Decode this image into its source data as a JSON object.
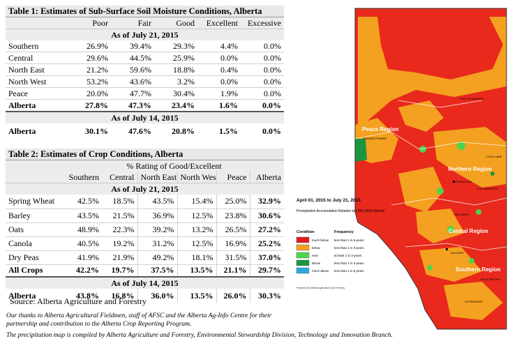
{
  "table1": {
    "title": "Table 1: Estimates of Sub-Surface Soil Moisture Conditions, Alberta",
    "columns": [
      "Poor",
      "Fair",
      "Good",
      "Excellent",
      "Excessive"
    ],
    "as_of_current": "As of July 21, 2015",
    "rows": [
      {
        "region": "Southern",
        "values": [
          "26.9%",
          "39.4%",
          "29.3%",
          "4.4%",
          "0.0%"
        ]
      },
      {
        "region": "Central",
        "values": [
          "29.6%",
          "44.5%",
          "25.9%",
          "0.0%",
          "0.0%"
        ]
      },
      {
        "region": "North East",
        "values": [
          "21.2%",
          "59.6%",
          "18.8%",
          "0.4%",
          "0.0%"
        ]
      },
      {
        "region": "North West",
        "values": [
          "53.2%",
          "43.6%",
          "3.2%",
          "0.0%",
          "0.0%"
        ]
      },
      {
        "region": "Peace",
        "values": [
          "20.0%",
          "47.7%",
          "30.4%",
          "1.9%",
          "0.0%"
        ]
      }
    ],
    "alberta_current": {
      "label": "Alberta",
      "values": [
        "27.8%",
        "47.3%",
        "23.4%",
        "1.6%",
        "0.0%"
      ]
    },
    "as_of_previous": "As of July 14, 2015",
    "alberta_previous": {
      "label": "Alberta",
      "values": [
        "30.1%",
        "47.6%",
        "20.8%",
        "1.5%",
        "0.0%"
      ]
    }
  },
  "table2": {
    "title": "Table 2: Estimates of Crop Conditions, Alberta",
    "subtitle": "% Rating of Good/Excellent",
    "columns": [
      "Southern",
      "Central",
      "North East",
      "North West",
      "Peace",
      "Alberta"
    ],
    "as_of_current": "As of July 21, 2015",
    "rows": [
      {
        "crop": "Spring Wheat",
        "values": [
          "42.5%",
          "18.5%",
          "43.5%",
          "15.4%",
          "25.0%",
          "32.9%"
        ]
      },
      {
        "crop": "Barley",
        "values": [
          "43.5%",
          "21.5%",
          "36.9%",
          "12.5%",
          "23.8%",
          "30.6%"
        ]
      },
      {
        "crop": "Oats",
        "values": [
          "48.9%",
          "22.3%",
          "39.2%",
          "13.2%",
          "26.5%",
          "27.2%"
        ]
      },
      {
        "crop": "Canola",
        "values": [
          "40.5%",
          "19.2%",
          "31.2%",
          "12.5%",
          "16.9%",
          "25.2%"
        ]
      },
      {
        "crop": "Dry Peas",
        "values": [
          "41.9%",
          "21.9%",
          "49.2%",
          "18.1%",
          "31.5%",
          "37.0%"
        ]
      }
    ],
    "all_crops": {
      "label": "All Crops",
      "values": [
        "42.2%",
        "19.7%",
        "37.5%",
        "13.5%",
        "21.1%",
        "29.7%"
      ]
    },
    "as_of_previous": "As of July 14, 2015",
    "alberta_previous": {
      "label": "Alberta",
      "values": [
        "43.8%",
        "16.8%",
        "36.0%",
        "13.5%",
        "26.0%",
        "30.3%"
      ]
    }
  },
  "source": "Source: Alberta Agriculture and Forestry",
  "note1": "Our thanks to Alberta Agricultural Fieldmen, staff of AFSC and the Alberta Ag-Info Centre for their partnership and contribution to the Alberta Crop Reporting Program.",
  "note2": "The precipitation map is compiled by Alberta Agriculture and Forestry, Environmental Stewardship Division, Technology and Innovation Branch.",
  "map": {
    "date_range": "April 01, 2015 to July 21, 2015",
    "subtitle": "Precipitation Accumulation Relative to 1961-2013 Normal",
    "legend_headers": [
      "Condition",
      "Frequency"
    ],
    "legend": [
      {
        "condition": "much below",
        "frequency": "less than 1 in 6-years",
        "color": "#e31a1c"
      },
      {
        "condition": "below",
        "frequency": "less than 1 in 3-years",
        "color": "#f4a020"
      },
      {
        "condition": "near",
        "frequency": "at least 1 in 3-years",
        "color": "#4cd44c"
      },
      {
        "condition": "above",
        "frequency": "less than 1 in 3-years",
        "color": "#1a9641"
      },
      {
        "condition": "much above",
        "frequency": "less than 1 in 6-years",
        "color": "#2fa8e0"
      }
    ],
    "regions": [
      "Peace Region",
      "Northern Region",
      "Central Region",
      "Southern Region"
    ],
    "cities": [
      "FORT MCMURRAY",
      "GRANDE PRAIRIE",
      "EDMONTON",
      "LLOYDMINSTER",
      "RED DEER",
      "CALGARY",
      "MEDICINE HAT",
      "LETHBRIDGE",
      "COLD LAKE"
    ],
    "footer": "Prepared by Alberta Agriculture and Forestry"
  }
}
